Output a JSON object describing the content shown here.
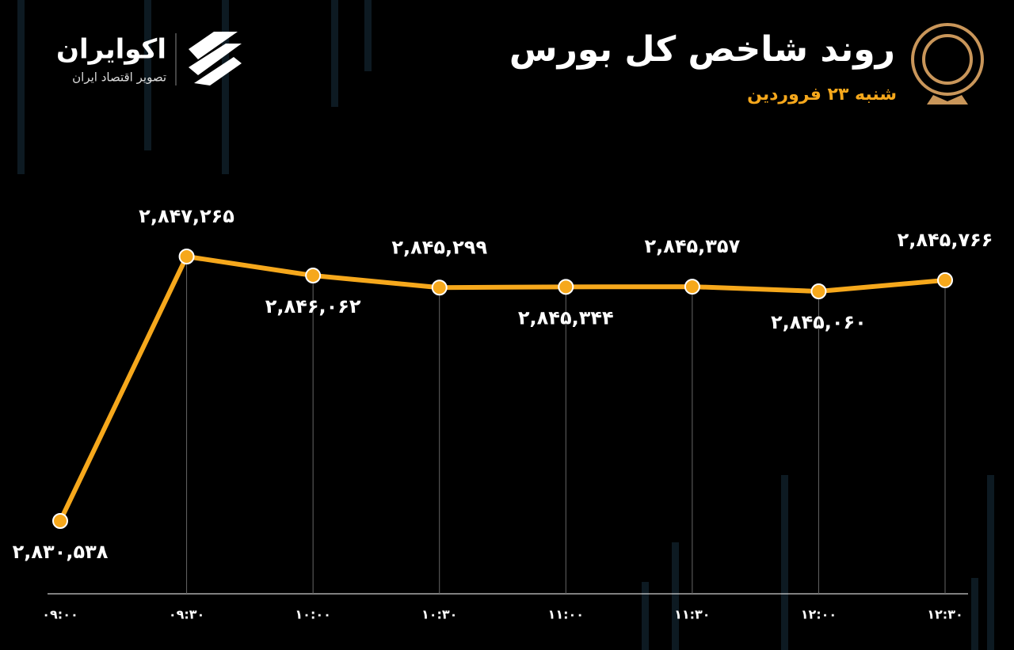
{
  "brand": {
    "name": "اکوایران",
    "tagline": "تصویر اقتصاد ایران"
  },
  "chart_data": {
    "type": "line",
    "title": "روند شاخص کل بورس",
    "subtitle": "شنبه ۲۳ فروردین",
    "categories": [
      "۰۹:۰۰",
      "۰۹:۳۰",
      "۱۰:۰۰",
      "۱۰:۳۰",
      "۱۱:۰۰",
      "۱۱:۳۰",
      "۱۲:۰۰",
      "۱۲:۳۰"
    ],
    "values": [
      2830538,
      2847265,
      2846062,
      2845299,
      2845344,
      2845357,
      2845060,
      2845766
    ],
    "value_labels": [
      "۲,۸۳۰,۵۳۸",
      "۲,۸۴۷,۲۶۵",
      "۲,۸۴۶,۰۶۲",
      "۲,۸۴۵,۲۹۹",
      "۲,۸۴۵,۳۴۴",
      "۲,۸۴۵,۳۵۷",
      "۲,۸۴۵,۰۶۰",
      "۲,۸۴۵,۷۶۶"
    ],
    "color": "#f6a81c"
  }
}
